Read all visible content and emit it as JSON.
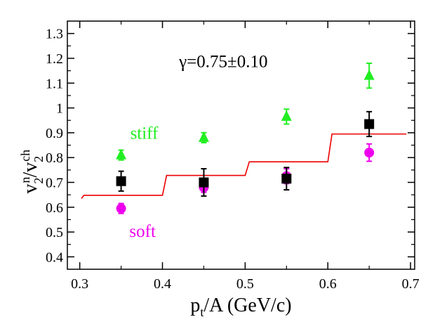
{
  "chart_data": {
    "type": "scatter",
    "xlabel": {
      "main": "p",
      "sub": "t",
      "rest": "/A (GeV/c)"
    },
    "ylabel": {
      "num_base": "v",
      "num_sup": "n",
      "num_sub": "2",
      "slash": "/",
      "den_base": "v",
      "den_sup": "ch",
      "den_sub": "2"
    },
    "xlim": [
      0.285,
      0.705
    ],
    "ylim": [
      0.35,
      1.35
    ],
    "x_ticks": [
      {
        "value": 0.3,
        "label": "0.3"
      },
      {
        "value": 0.4,
        "label": "0.4"
      },
      {
        "value": 0.5,
        "label": "0.5"
      },
      {
        "value": 0.6,
        "label": "0.6"
      },
      {
        "value": 0.7,
        "label": "0.7"
      }
    ],
    "y_ticks": [
      {
        "value": 0.4,
        "label": "0.4"
      },
      {
        "value": 0.5,
        "label": "0.5"
      },
      {
        "value": 0.6,
        "label": "0.6"
      },
      {
        "value": 0.7,
        "label": "0.7"
      },
      {
        "value": 0.8,
        "label": "0.8"
      },
      {
        "value": 0.9,
        "label": "0.9"
      },
      {
        "value": 1.0,
        "label": "1"
      },
      {
        "value": 1.1,
        "label": "1.1"
      },
      {
        "value": 1.2,
        "label": "1.2"
      },
      {
        "value": 1.3,
        "label": "1.3"
      }
    ],
    "annotations": {
      "gamma": "γ=0.75±0.10",
      "stiff": "stiff",
      "soft": "soft"
    },
    "series": [
      {
        "key": "stiff",
        "marker": "triangle",
        "color": "#22ee22",
        "points": [
          {
            "x": 0.35,
            "y": 0.81,
            "err": 0.02
          },
          {
            "x": 0.45,
            "y": 0.88,
            "err": 0.02
          },
          {
            "x": 0.55,
            "y": 0.965,
            "err": 0.03
          },
          {
            "x": 0.65,
            "y": 1.13,
            "err": 0.05
          }
        ]
      },
      {
        "key": "data",
        "marker": "square",
        "color": "#000000",
        "points": [
          {
            "x": 0.35,
            "y": 0.705,
            "err": 0.04
          },
          {
            "x": 0.45,
            "y": 0.7,
            "err": 0.055
          },
          {
            "x": 0.55,
            "y": 0.715,
            "err": 0.045
          },
          {
            "x": 0.65,
            "y": 0.935,
            "err": 0.05
          }
        ]
      },
      {
        "key": "soft",
        "marker": "circle",
        "color": "#ee00ee",
        "points": [
          {
            "x": 0.35,
            "y": 0.595,
            "err": 0.02
          },
          {
            "x": 0.45,
            "y": 0.68,
            "err": 0.02
          },
          {
            "x": 0.55,
            "y": 0.725,
            "err": 0.03
          },
          {
            "x": 0.65,
            "y": 0.82,
            "err": 0.035
          }
        ]
      }
    ],
    "model_line": {
      "color": "#ee0000",
      "points": [
        [
          0.302,
          0.635
        ],
        [
          0.305,
          0.648
        ],
        [
          0.4,
          0.648
        ],
        [
          0.405,
          0.728
        ],
        [
          0.5,
          0.728
        ],
        [
          0.505,
          0.783
        ],
        [
          0.6,
          0.783
        ],
        [
          0.605,
          0.895
        ],
        [
          0.695,
          0.895
        ]
      ]
    }
  }
}
